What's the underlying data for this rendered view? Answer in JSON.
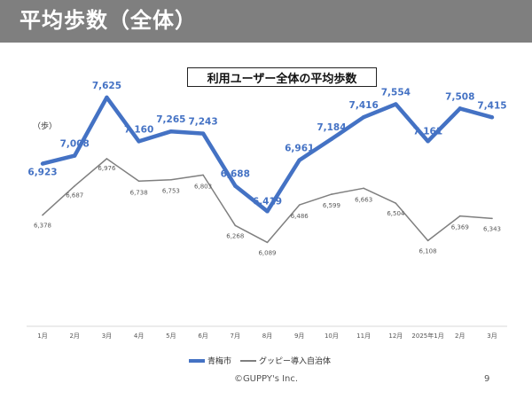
{
  "header": {
    "title": "平均歩数（全体）"
  },
  "footer": {
    "copyright": "©GUPPY's Inc.",
    "page_number": "9"
  },
  "chart_data": {
    "type": "line",
    "title": "利用ユーザー全体の平均歩数",
    "ylabel": "（歩）",
    "categories": [
      "1月",
      "2月",
      "3月",
      "4月",
      "5月",
      "6月",
      "7月",
      "8月",
      "9月",
      "10月",
      "11月",
      "12月",
      "2025年1月",
      "2月",
      "3月"
    ],
    "ylim": [
      5200,
      8000
    ],
    "grid": false,
    "legend": "bottom",
    "series": [
      {
        "name": "青梅市",
        "color": "#4472c4",
        "values": [
          6923,
          7008,
          7625,
          7160,
          7265,
          7243,
          6688,
          6419,
          6961,
          7184,
          7416,
          7554,
          7161,
          7508,
          7415
        ],
        "labels": [
          "6,923",
          "7,008",
          "7,625",
          "7,160",
          "7,265",
          "7,243",
          "6,688",
          "6,419",
          "6,961",
          "7,184",
          "7,416",
          "7,554",
          "7,161",
          "7,508",
          "7,415"
        ]
      },
      {
        "name": "グッピー導入自治体",
        "color": "#7f7f7f",
        "values": [
          6378,
          6687,
          6976,
          6738,
          6753,
          6803,
          6268,
          6089,
          6486,
          6599,
          6663,
          6504,
          6108,
          6369,
          6343
        ],
        "labels": [
          "6,378",
          "6,687",
          "6,976",
          "6,738",
          "6,753",
          "6,803",
          "6,268",
          "6,089",
          "6,486",
          "6,599",
          "6,663",
          "6,504",
          "6,108",
          "6,369",
          "6,343"
        ]
      }
    ]
  }
}
